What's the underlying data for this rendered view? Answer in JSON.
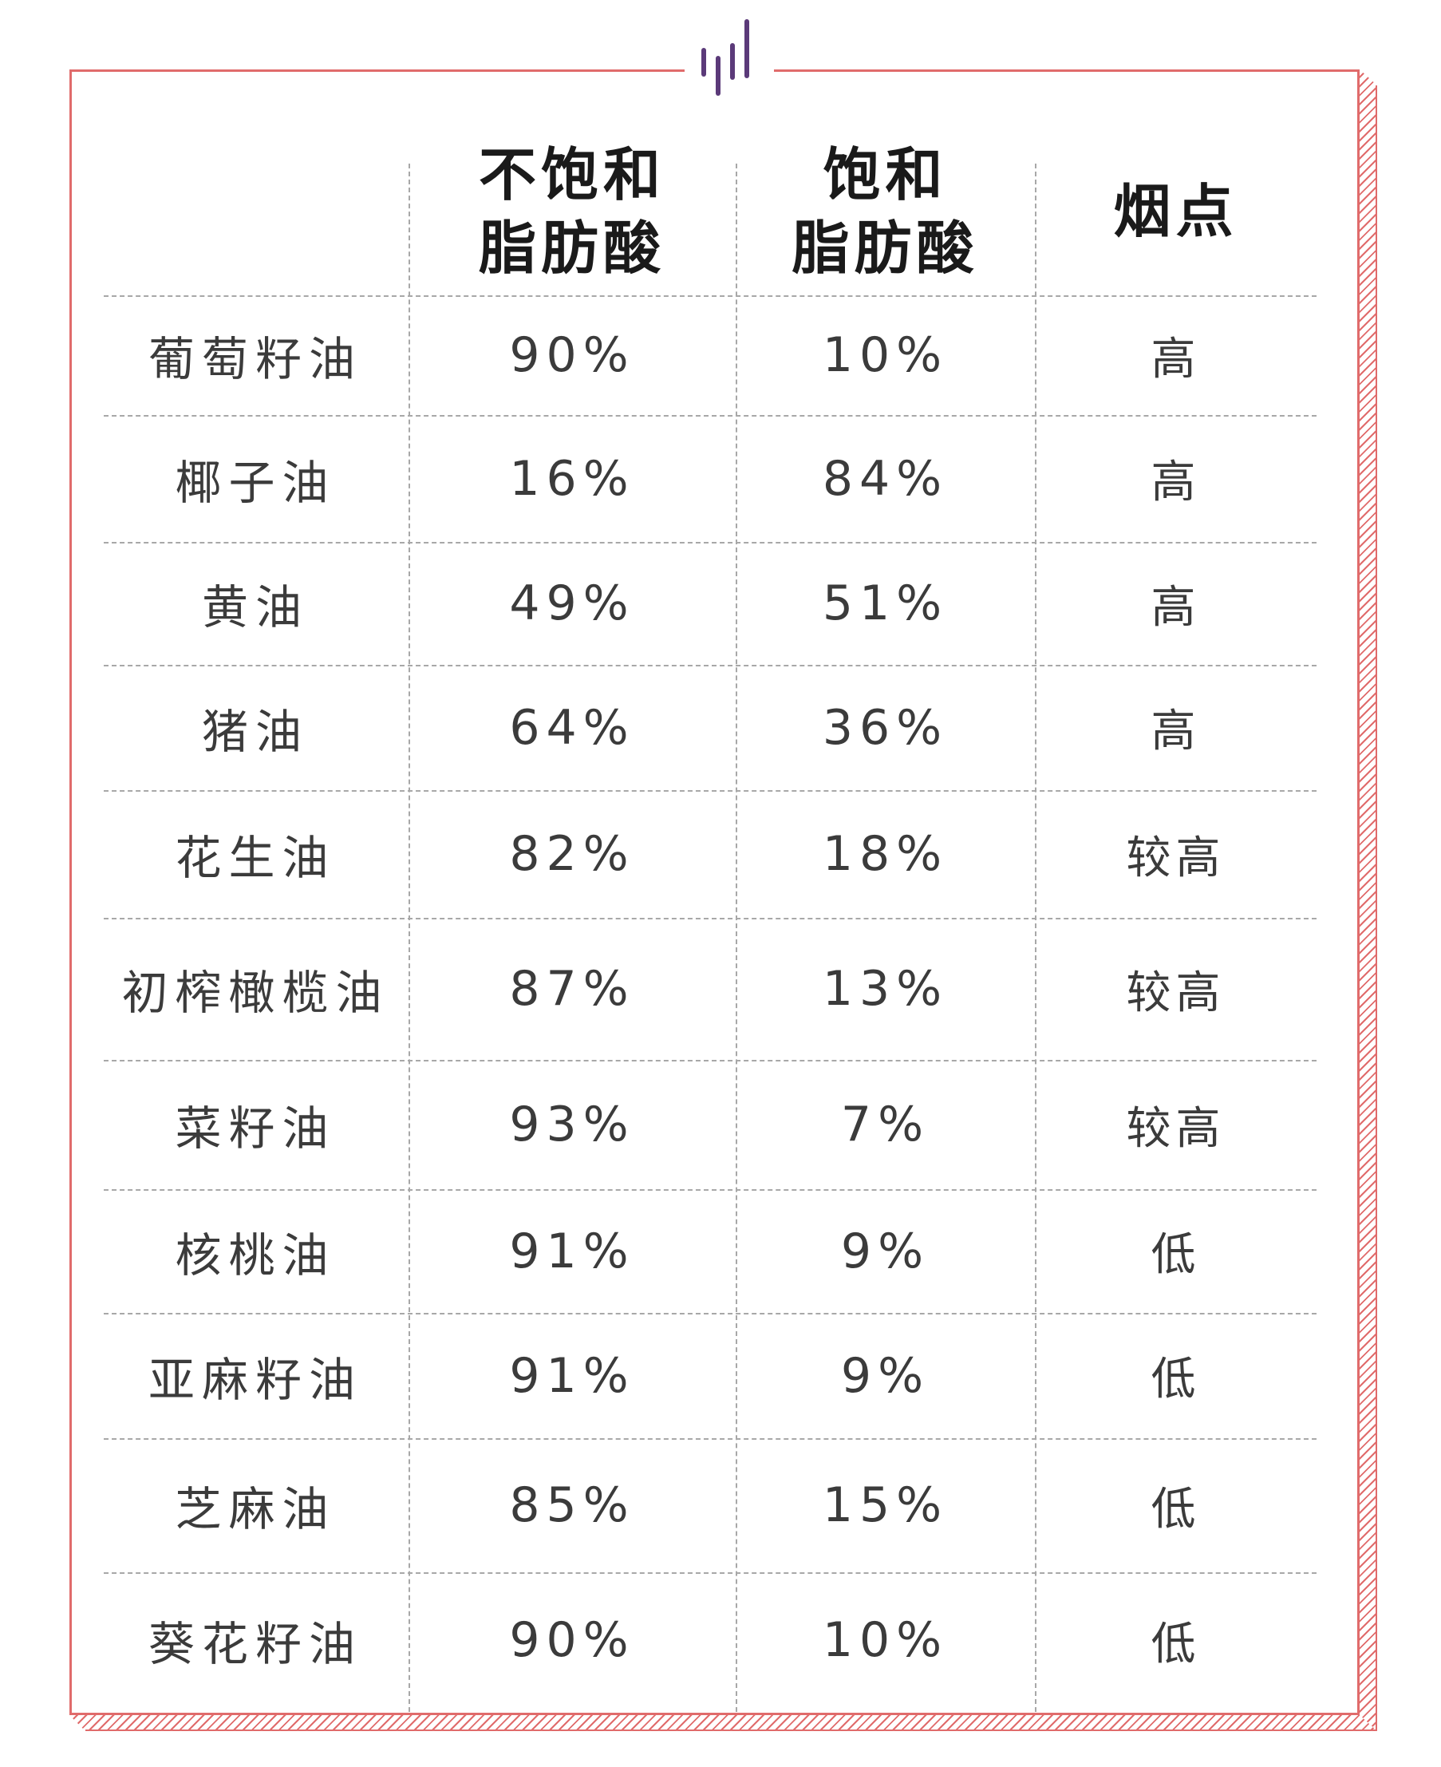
{
  "header": {
    "col1": "",
    "col2_line1": "不饱和",
    "col2_line2": "脂肪酸",
    "col3_line1": "饱和",
    "col3_line2": "脂肪酸",
    "col4": "烟点"
  },
  "rows": [
    {
      "name": "葡萄籽油",
      "unsaturated": "90%",
      "saturated": "10%",
      "smoke_point": "高"
    },
    {
      "name": "椰子油",
      "unsaturated": "16%",
      "saturated": "84%",
      "smoke_point": "高"
    },
    {
      "name": "黄油",
      "unsaturated": "49%",
      "saturated": "51%",
      "smoke_point": "高"
    },
    {
      "name": "猪油",
      "unsaturated": "64%",
      "saturated": "36%",
      "smoke_point": "高"
    },
    {
      "name": "花生油",
      "unsaturated": "82%",
      "saturated": "18%",
      "smoke_point": "较高"
    },
    {
      "name": "初榨橄榄油",
      "unsaturated": "87%",
      "saturated": "13%",
      "smoke_point": "较高"
    },
    {
      "name": "菜籽油",
      "unsaturated": "93%",
      "saturated": "7%",
      "smoke_point": "较高"
    },
    {
      "name": "核桃油",
      "unsaturated": "91%",
      "saturated": "9%",
      "smoke_point": "低"
    },
    {
      "name": "亚麻籽油",
      "unsaturated": "91%",
      "saturated": "9%",
      "smoke_point": "低"
    },
    {
      "name": "芝麻油",
      "unsaturated": "85%",
      "saturated": "15%",
      "smoke_point": "低"
    },
    {
      "name": "葵花籽油",
      "unsaturated": "90%",
      "saturated": "10%",
      "smoke_point": "低"
    }
  ],
  "colors": {
    "frame": "#e06b6b",
    "logo": "#5b3a79",
    "grid": "#a8a8a8",
    "text": "#3b3b3b",
    "header_text": "#1a1a1a"
  },
  "icons": {
    "logo": "sound-bars-logo-icon"
  }
}
